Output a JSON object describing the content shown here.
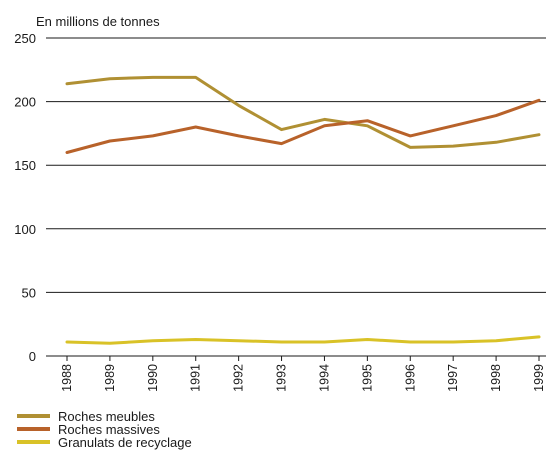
{
  "chart_data": {
    "type": "line",
    "unit_label": "En millions de tonnes",
    "x": [
      "1988",
      "1989",
      "1990",
      "1991",
      "1992",
      "1993",
      "1994",
      "1995",
      "1996",
      "1997",
      "1998",
      "1999"
    ],
    "ylim": [
      0,
      250
    ],
    "yticks": [
      "0",
      "50",
      "100",
      "150",
      "200",
      "250"
    ],
    "grid": "horizontal",
    "legend_position": "bottom-left",
    "series": [
      {
        "name": "Roches meubles",
        "color": "#b09033",
        "values": [
          214,
          218,
          219,
          219,
          197,
          178,
          186,
          181,
          164,
          165,
          168,
          174
        ]
      },
      {
        "name": "Roches massives",
        "color": "#b8622a",
        "values": [
          160,
          169,
          173,
          180,
          173,
          167,
          181,
          185,
          173,
          181,
          189,
          201
        ]
      },
      {
        "name": "Granulats de recyclage",
        "color": "#d9c227",
        "values": [
          11,
          10,
          12,
          13,
          12,
          11,
          11,
          13,
          11,
          11,
          12,
          15
        ]
      }
    ]
  }
}
